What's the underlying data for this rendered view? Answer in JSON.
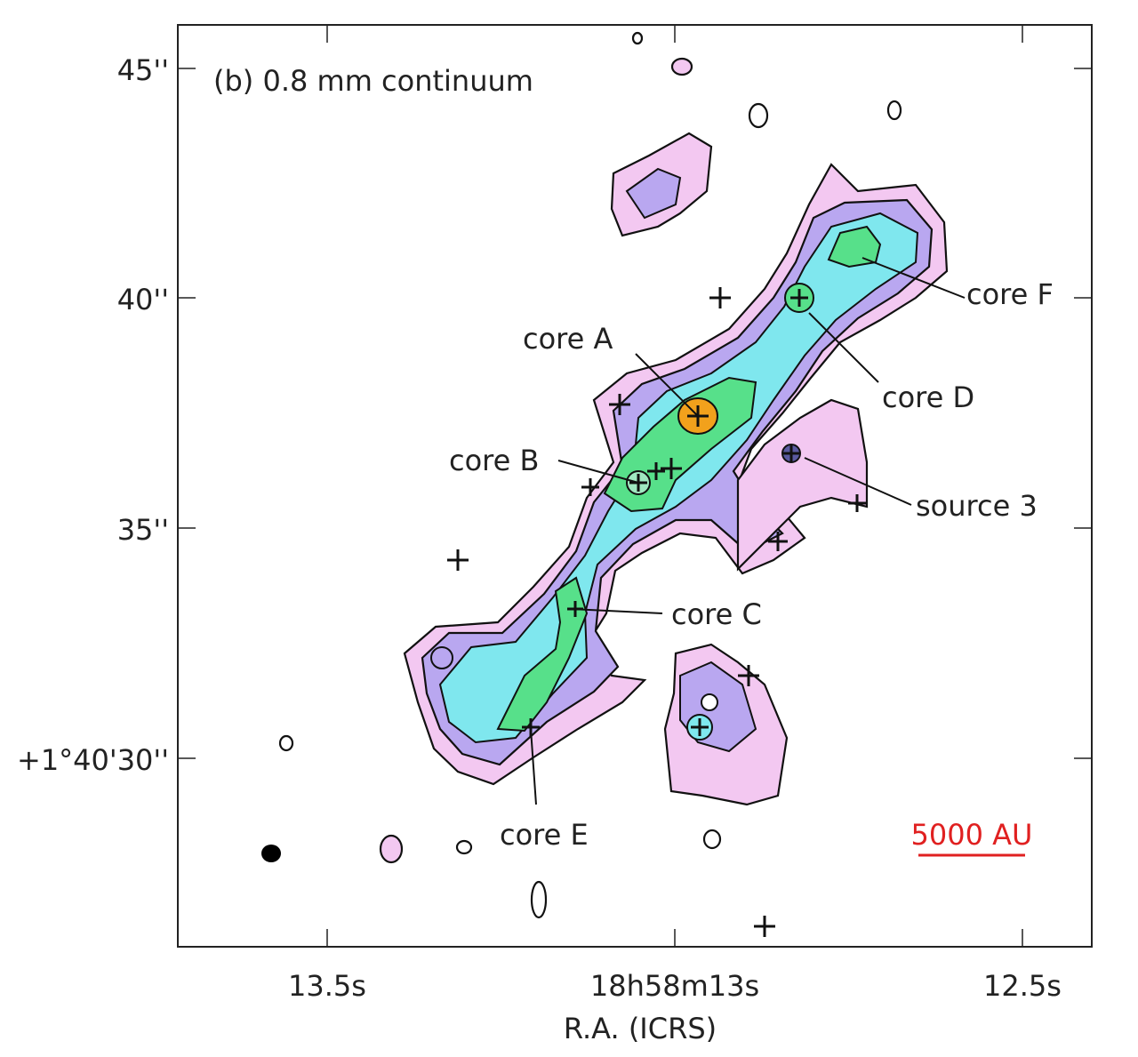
{
  "panel": {
    "title": "(b) 0.8 mm continuum",
    "x_axis": {
      "label": "R.A. (ICRS)",
      "ticks": [
        "13.5s",
        "18h58m13s",
        "12.5s"
      ]
    },
    "y_axis": {
      "ticks": [
        "45''",
        "40''",
        "35''",
        "+1°40'30''"
      ]
    },
    "annotations": [
      "core A",
      "core B",
      "core C",
      "core D",
      "core E",
      "core F",
      "source 3"
    ],
    "scale_bar": "5000 AU"
  }
}
